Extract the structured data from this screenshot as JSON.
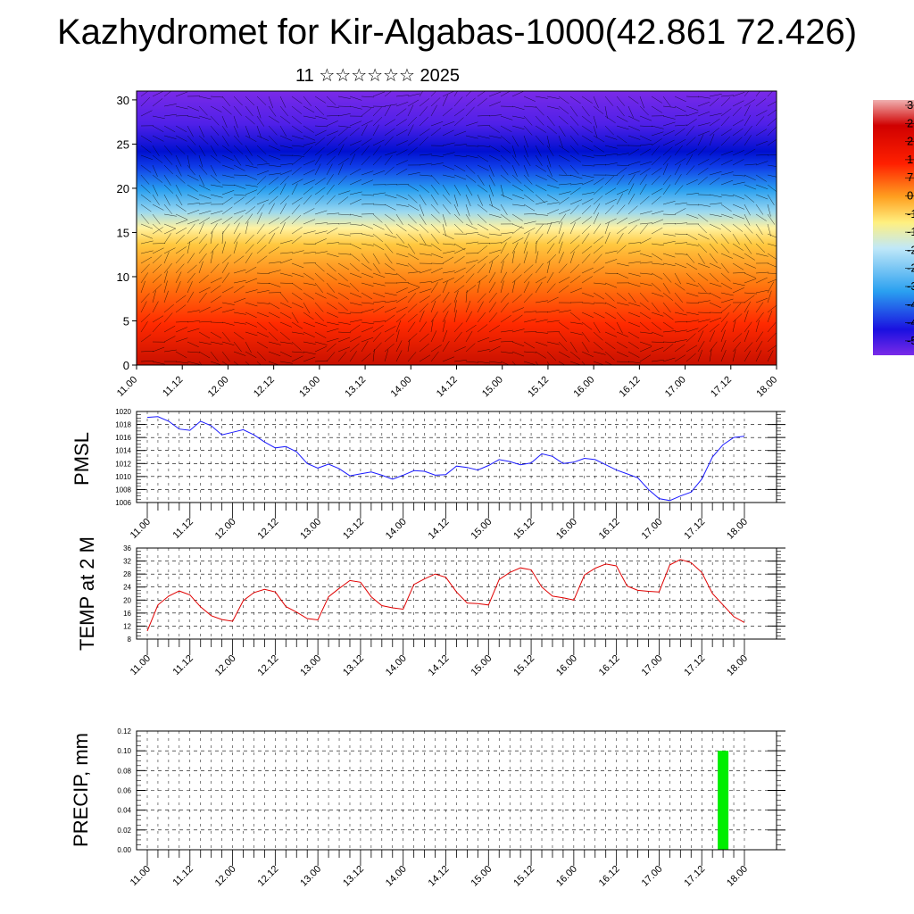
{
  "title": "Kazhydromet for Kir-Algabas-1000(42.861 72.426)",
  "subtitle": "11 ☆☆☆☆☆☆ 2025",
  "colors": {
    "pmsl_line": "#1a1aff",
    "temp_line": "#e00000",
    "precip_bar": "#00ee00"
  },
  "chart_data": [
    {
      "type": "heatmap",
      "name": "vertical-profile",
      "title": "",
      "xlabel": "",
      "ylabel": "",
      "x_ticks": [
        "11.00",
        "11.12",
        "12.00",
        "12.12",
        "13.00",
        "13.12",
        "14.00",
        "14.12",
        "15.00",
        "15.12",
        "16.00",
        "16.12",
        "17.00",
        "17.12",
        "18.00"
      ],
      "y_ticks": [
        0,
        5,
        10,
        15,
        20,
        25,
        30
      ],
      "ylim": [
        0,
        31
      ],
      "colorbar_labels": [
        "3",
        "2",
        "2",
        "1",
        "7",
        "0",
        "-1",
        "-1",
        "-2",
        "-2",
        "-3",
        "-4",
        "-4",
        "-5"
      ],
      "arrows_overlay": true
    },
    {
      "type": "line",
      "name": "pmsl",
      "ylabel": "PMSL",
      "ylim": [
        1006,
        1020
      ],
      "y_ticks": [
        1006,
        1008,
        1010,
        1012,
        1014,
        1016,
        1018,
        1020
      ],
      "x_ticks": [
        "11.00",
        "11.12",
        "12.00",
        "12.12",
        "13.00",
        "13.12",
        "14.00",
        "14.12",
        "15.00",
        "15.12",
        "16.00",
        "16.12",
        "17.00",
        "17.12",
        "18.00"
      ],
      "values": [
        1019.1,
        1019.2,
        1018.5,
        1017.3,
        1017.1,
        1018.5,
        1017.8,
        1016.4,
        1016.8,
        1017.2,
        1016.4,
        1015.3,
        1014.4,
        1014.6,
        1013.8,
        1012.0,
        1011.3,
        1011.9,
        1011.2,
        1010.1,
        1010.4,
        1010.7,
        1010.2,
        1009.6,
        1010.2,
        1010.9,
        1010.8,
        1010.2,
        1010.3,
        1011.6,
        1011.4,
        1011.0,
        1011.7,
        1012.6,
        1012.3,
        1011.8,
        1012.1,
        1013.5,
        1013.1,
        1012.0,
        1012.2,
        1012.8,
        1012.6,
        1011.8,
        1011.0,
        1010.4,
        1009.8,
        1008.0,
        1006.6,
        1006.3,
        1007.0,
        1007.6,
        1009.6,
        1013.0,
        1014.9,
        1016.0,
        1016.2
      ]
    },
    {
      "type": "line",
      "name": "temp-2m",
      "ylabel": "TEMP at 2 M",
      "ylim": [
        8,
        36
      ],
      "y_ticks": [
        8,
        12,
        16,
        20,
        24,
        28,
        32,
        36
      ],
      "x_ticks": [
        "11.00",
        "11.12",
        "12.00",
        "12.12",
        "13.00",
        "13.12",
        "14.00",
        "14.12",
        "15.00",
        "15.12",
        "16.00",
        "16.12",
        "17.00",
        "17.12",
        "18.00"
      ],
      "values": [
        10.5,
        18.5,
        21.2,
        22.8,
        21.6,
        17.9,
        15.2,
        14.0,
        13.5,
        19.8,
        22.3,
        23.3,
        22.5,
        18.0,
        16.3,
        14.3,
        13.9,
        21.0,
        23.6,
        26.0,
        25.5,
        21.0,
        18.3,
        17.6,
        17.2,
        24.8,
        26.5,
        28.0,
        27.0,
        22.5,
        19.1,
        18.9,
        18.5,
        26.3,
        28.5,
        29.9,
        29.3,
        24.0,
        21.2,
        20.7,
        20.0,
        27.7,
        29.8,
        31.1,
        30.5,
        24.3,
        23.0,
        22.7,
        22.5,
        30.8,
        32.5,
        31.5,
        28.5,
        22.0,
        18.5,
        14.9,
        13.1
      ]
    },
    {
      "type": "bar",
      "name": "precip",
      "ylabel": "PRECIP, mm",
      "ylim": [
        0,
        0.12
      ],
      "y_ticks": [
        "0.00",
        "0.02",
        "0.04",
        "0.06",
        "0.08",
        "0.10",
        "0.12"
      ],
      "x_ticks": [
        "11.00",
        "11.12",
        "12.00",
        "12.12",
        "13.00",
        "13.12",
        "14.00",
        "14.12",
        "15.00",
        "15.12",
        "16.00",
        "16.12",
        "17.00",
        "17.12",
        "18.00"
      ],
      "bars": [
        {
          "x_hours": 162,
          "value": 0.1
        }
      ]
    }
  ]
}
